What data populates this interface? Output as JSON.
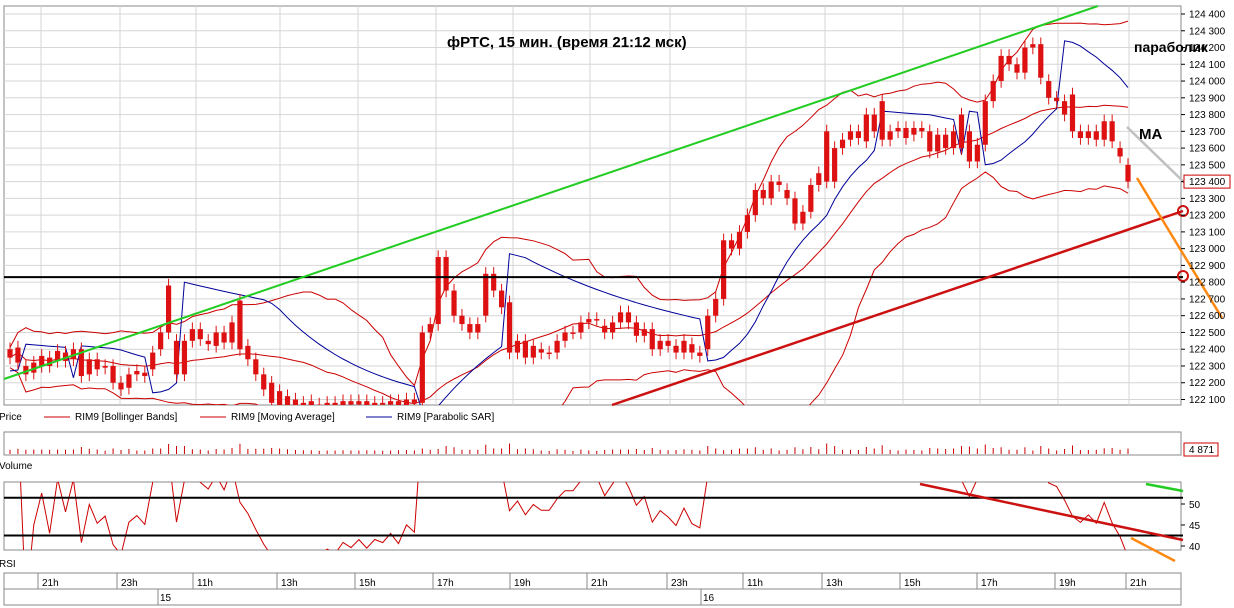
{
  "chart_data": [
    {
      "type": "candlestick",
      "title": "фРТС,  15 мин.  (время 21:12 мск)",
      "ylim": [
        122050,
        124430
      ],
      "yticks": [
        "124 400",
        "124 300",
        "124 200",
        "124 100",
        "124 000",
        "123 900",
        "123 800",
        "123 700",
        "123 600",
        "123 500",
        "123 400",
        "123 300",
        "123 200",
        "123 100",
        "123 000",
        "122 900",
        "122 800",
        "122 700",
        "122 600",
        "122 500",
        "122 400",
        "122 300",
        "122 200",
        "122 100"
      ],
      "ytick_values": [
        124400,
        124300,
        124200,
        124100,
        124000,
        123900,
        123800,
        123700,
        123600,
        123500,
        123400,
        123300,
        123200,
        123100,
        123000,
        122900,
        122800,
        122700,
        122600,
        122500,
        122400,
        122300,
        122200,
        122100
      ],
      "last_price_label": "123 400",
      "last_price": 123400,
      "annotations": [
        "параболик",
        "MA"
      ],
      "horizontal_level": 122830,
      "legend": [
        {
          "name": "Price",
          "color": "#cc0000"
        },
        {
          "name": "RIM9 [Bollinger Bands]",
          "color": "#cc0000"
        },
        {
          "name": "RIM9 [Moving Average]",
          "color": "#cc0000"
        },
        {
          "name": "RIM9 [Parabolic SAR]",
          "color": "#000099"
        }
      ],
      "candles": [
        {
          "o": 122400,
          "c": 122350
        },
        {
          "o": 122320,
          "c": 122410
        },
        {
          "o": 122300,
          "c": 122250
        },
        {
          "o": 122260,
          "c": 122320
        },
        {
          "o": 122300,
          "c": 122360
        },
        {
          "o": 122350,
          "c": 122300
        },
        {
          "o": 122330,
          "c": 122390
        },
        {
          "o": 122380,
          "c": 122330
        },
        {
          "o": 122340,
          "c": 122400
        },
        {
          "o": 122400,
          "c": 122240
        },
        {
          "o": 122250,
          "c": 122340
        },
        {
          "o": 122340,
          "c": 122280
        },
        {
          "o": 122290,
          "c": 122300
        },
        {
          "o": 122300,
          "c": 122200
        },
        {
          "o": 122200,
          "c": 122160
        },
        {
          "o": 122170,
          "c": 122250
        },
        {
          "o": 122250,
          "c": 122270
        },
        {
          "o": 122260,
          "c": 122240
        },
        {
          "o": 122280,
          "c": 122380
        },
        {
          "o": 122400,
          "c": 122500
        },
        {
          "o": 122780,
          "c": 122500
        },
        {
          "o": 122450,
          "c": 122250
        },
        {
          "o": 122250,
          "c": 122450
        },
        {
          "o": 122450,
          "c": 122520
        },
        {
          "o": 122520,
          "c": 122460
        },
        {
          "o": 122450,
          "c": 122430
        },
        {
          "o": 122420,
          "c": 122500
        },
        {
          "o": 122500,
          "c": 122440
        },
        {
          "o": 122440,
          "c": 122560
        },
        {
          "o": 122690,
          "c": 122400
        },
        {
          "o": 122420,
          "c": 122340
        },
        {
          "o": 122340,
          "c": 122250
        },
        {
          "o": 122250,
          "c": 122160
        },
        {
          "o": 122200,
          "c": 122080
        },
        {
          "o": 122150,
          "c": 122050
        },
        {
          "o": 122120,
          "c": 122050
        },
        {
          "o": 122100,
          "c": 122060
        },
        {
          "o": 122080,
          "c": 122050
        },
        {
          "o": 122090,
          "c": 122060
        },
        {
          "o": 122070,
          "c": 122060
        },
        {
          "o": 122060,
          "c": 122080
        },
        {
          "o": 122080,
          "c": 122060
        },
        {
          "o": 122060,
          "c": 122090
        },
        {
          "o": 122090,
          "c": 122070
        },
        {
          "o": 122070,
          "c": 122090
        },
        {
          "o": 122090,
          "c": 122060
        },
        {
          "o": 122060,
          "c": 122080
        },
        {
          "o": 122080,
          "c": 122070
        },
        {
          "o": 122070,
          "c": 122090
        },
        {
          "o": 122090,
          "c": 122060
        },
        {
          "o": 122060,
          "c": 122100
        },
        {
          "o": 122100,
          "c": 122080
        },
        {
          "o": 122080,
          "c": 122500
        },
        {
          "o": 122500,
          "c": 122550
        },
        {
          "o": 122550,
          "c": 122950
        },
        {
          "o": 122950,
          "c": 122750
        },
        {
          "o": 122750,
          "c": 122600
        },
        {
          "o": 122600,
          "c": 122550
        },
        {
          "o": 122550,
          "c": 122500
        },
        {
          "o": 122500,
          "c": 122550
        },
        {
          "o": 122600,
          "c": 122850
        },
        {
          "o": 122850,
          "c": 122750
        },
        {
          "o": 122750,
          "c": 122650
        },
        {
          "o": 122680,
          "c": 122380
        },
        {
          "o": 122380,
          "c": 122450
        },
        {
          "o": 122450,
          "c": 122350
        },
        {
          "o": 122350,
          "c": 122420
        },
        {
          "o": 122400,
          "c": 122380
        },
        {
          "o": 122380,
          "c": 122380
        },
        {
          "o": 122380,
          "c": 122450
        },
        {
          "o": 122450,
          "c": 122500
        },
        {
          "o": 122500,
          "c": 122500
        },
        {
          "o": 122500,
          "c": 122560
        },
        {
          "o": 122560,
          "c": 122580
        },
        {
          "o": 122580,
          "c": 122580
        },
        {
          "o": 122540,
          "c": 122500
        },
        {
          "o": 122500,
          "c": 122560
        },
        {
          "o": 122560,
          "c": 122620
        },
        {
          "o": 122620,
          "c": 122560
        },
        {
          "o": 122560,
          "c": 122480
        },
        {
          "o": 122480,
          "c": 122520
        },
        {
          "o": 122520,
          "c": 122400
        },
        {
          "o": 122400,
          "c": 122450
        },
        {
          "o": 122450,
          "c": 122420
        },
        {
          "o": 122420,
          "c": 122380
        },
        {
          "o": 122380,
          "c": 122450
        },
        {
          "o": 122430,
          "c": 122380
        },
        {
          "o": 122380,
          "c": 122360
        },
        {
          "o": 122400,
          "c": 122600
        },
        {
          "o": 122600,
          "c": 122700
        },
        {
          "o": 122700,
          "c": 123050
        },
        {
          "o": 123050,
          "c": 123000
        },
        {
          "o": 123000,
          "c": 123100
        },
        {
          "o": 123100,
          "c": 123200
        },
        {
          "o": 123200,
          "c": 123350
        },
        {
          "o": 123350,
          "c": 123300
        },
        {
          "o": 123300,
          "c": 123400
        },
        {
          "o": 123400,
          "c": 123380
        },
        {
          "o": 123350,
          "c": 123300
        },
        {
          "o": 123300,
          "c": 123150
        },
        {
          "o": 123150,
          "c": 123220
        },
        {
          "o": 123220,
          "c": 123380
        },
        {
          "o": 123380,
          "c": 123450
        },
        {
          "o": 123700,
          "c": 123400
        },
        {
          "o": 123400,
          "c": 123600
        },
        {
          "o": 123600,
          "c": 123650
        },
        {
          "o": 123650,
          "c": 123700
        },
        {
          "o": 123700,
          "c": 123660
        },
        {
          "o": 123640,
          "c": 123800
        },
        {
          "o": 123800,
          "c": 123700
        },
        {
          "o": 123880,
          "c": 123650
        },
        {
          "o": 123650,
          "c": 123700
        },
        {
          "o": 123700,
          "c": 123720
        },
        {
          "o": 123720,
          "c": 123660
        },
        {
          "o": 123680,
          "c": 123720
        },
        {
          "o": 123720,
          "c": 123700
        },
        {
          "o": 123700,
          "c": 123580
        },
        {
          "o": 123580,
          "c": 123680
        },
        {
          "o": 123680,
          "c": 123600
        },
        {
          "o": 123600,
          "c": 123700
        },
        {
          "o": 123800,
          "c": 123600
        },
        {
          "o": 123700,
          "c": 123520
        },
        {
          "o": 123520,
          "c": 123620
        },
        {
          "o": 123620,
          "c": 123880
        },
        {
          "o": 123880,
          "c": 124000
        },
        {
          "o": 124000,
          "c": 124150
        },
        {
          "o": 124150,
          "c": 124100
        },
        {
          "o": 124100,
          "c": 124050
        },
        {
          "o": 124050,
          "c": 124200
        },
        {
          "o": 124200,
          "c": 124220
        },
        {
          "o": 124220,
          "c": 124020
        },
        {
          "o": 124000,
          "c": 123900
        },
        {
          "o": 123900,
          "c": 123880
        },
        {
          "o": 123880,
          "c": 123800
        },
        {
          "o": 123920,
          "c": 123700
        },
        {
          "o": 123700,
          "c": 123660
        },
        {
          "o": 123660,
          "c": 123700
        },
        {
          "o": 123700,
          "c": 123650
        },
        {
          "o": 123650,
          "c": 123760
        },
        {
          "o": 123760,
          "c": 123640
        },
        {
          "o": 123600,
          "c": 123550
        },
        {
          "o": 123500,
          "c": 123400
        }
      ]
    },
    {
      "type": "bar",
      "title": "Volume",
      "last_value_label": "4 871"
    },
    {
      "type": "line",
      "title": "RSI",
      "ylim": [
        38,
        57
      ],
      "yticks": [
        "50",
        "45",
        "40"
      ],
      "ytick_values": [
        50,
        45,
        40
      ],
      "levels": [
        51.5,
        42.5
      ]
    }
  ],
  "time_axis": {
    "labels": [
      "21h",
      "23h",
      "11h",
      "13h",
      "15h",
      "17h",
      "19h",
      "21h",
      "23h",
      "11h",
      "13h",
      "15h",
      "17h",
      "19h",
      "21h"
    ],
    "dates": [
      "15",
      "16"
    ]
  },
  "colors": {
    "candle": "#dd1111",
    "bollinger": "#cc0000",
    "moving_average": "#cc0000",
    "parabolic_sar": "#000099",
    "green_trendline": "#22cc22",
    "red_trendline": "#cc1111",
    "level_line": "#000000",
    "orange_projection": "#ff8811",
    "ma_projection": "#c0c0c0"
  }
}
